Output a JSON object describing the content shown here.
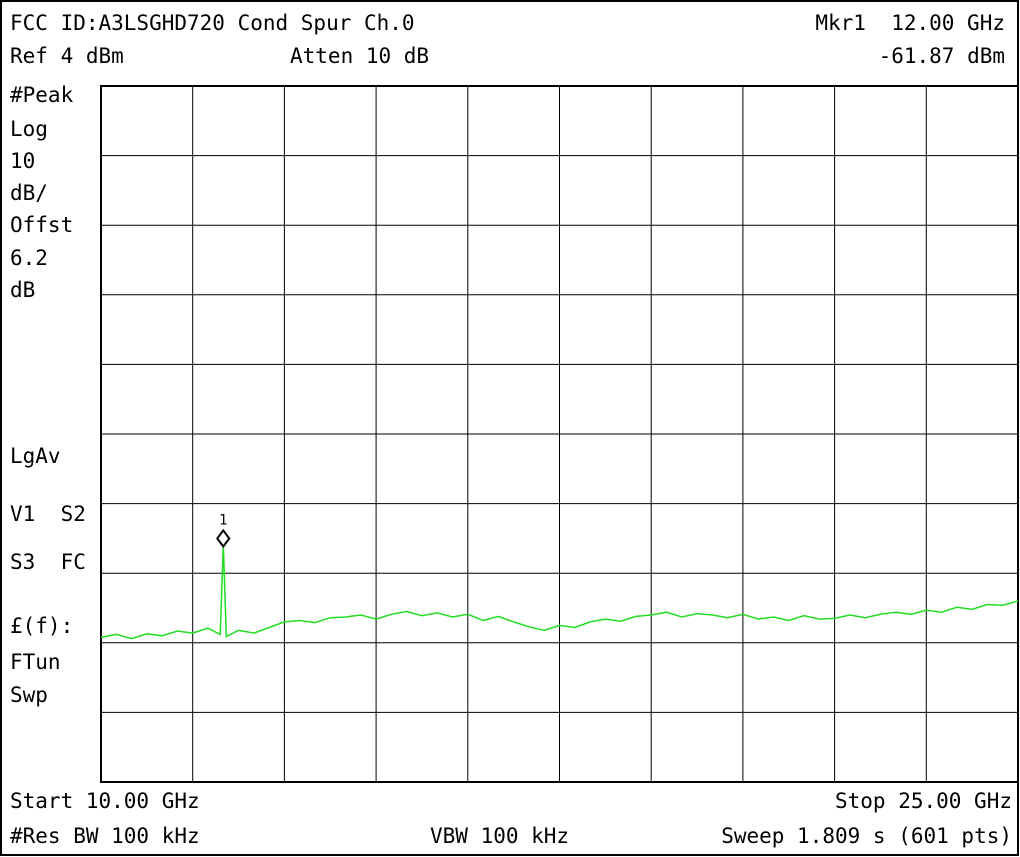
{
  "chart_data": {
    "type": "line",
    "title": "FCC ID:A3LSGHD720 Cond Spur Ch.0",
    "marker_readout": "Mkr1  12.00 GHz",
    "marker_level": "-61.87 dBm",
    "ref_level": "Ref 4 dBm",
    "attenuation": "Atten 10 dB",
    "side_labels": [
      "#Peak",
      "Log",
      "10",
      "dB/",
      "Offst",
      "6.2",
      "dB",
      "LgAv",
      "V1  S2",
      "S3  FC",
      "£(f):",
      "FTun",
      "Swp"
    ],
    "start": "Start 10.00 GHz",
    "stop": "Stop 25.00 GHz",
    "res_bw": "#Res BW 100 kHz",
    "vbw": "VBW 100 kHz",
    "sweep": "Sweep 1.809 s (601 pts)",
    "xlim": [
      10,
      25
    ],
    "ylim": [
      -96,
      4
    ],
    "marker": {
      "label": "1",
      "x": 12,
      "value": -61.87
    },
    "series": [
      {
        "color": "#22dd22",
        "x": [
          10,
          10.25,
          10.5,
          10.75,
          11,
          11.25,
          11.5,
          11.75,
          11.95,
          12,
          12.05,
          12.25,
          12.5,
          12.75,
          13,
          13.25,
          13.5,
          13.75,
          14,
          14.25,
          14.5,
          14.75,
          15,
          15.25,
          15.5,
          15.75,
          16,
          16.25,
          16.5,
          16.75,
          17,
          17.25,
          17.5,
          17.75,
          18,
          18.25,
          18.5,
          18.75,
          19,
          19.25,
          19.5,
          19.75,
          20,
          20.25,
          20.5,
          20.75,
          21,
          21.25,
          21.5,
          21.75,
          22,
          22.25,
          22.5,
          22.75,
          23,
          23.25,
          23.5,
          23.75,
          24,
          24.25,
          24.5,
          24.75,
          25
        ],
        "values": [
          -75.2,
          -74.8,
          -75.4,
          -74.7,
          -75.0,
          -74.3,
          -74.6,
          -73.9,
          -74.8,
          -61.87,
          -75.1,
          -74.2,
          -74.6,
          -73.8,
          -73.0,
          -72.8,
          -73.1,
          -72.4,
          -72.3,
          -72.0,
          -72.6,
          -71.9,
          -71.5,
          -72.1,
          -71.7,
          -72.3,
          -71.9,
          -72.8,
          -72.2,
          -73.0,
          -73.7,
          -74.2,
          -73.5,
          -73.8,
          -73.0,
          -72.6,
          -72.9,
          -72.2,
          -72.0,
          -71.6,
          -72.3,
          -71.8,
          -72.0,
          -72.4,
          -71.9,
          -72.6,
          -72.3,
          -72.8,
          -72.1,
          -72.6,
          -72.5,
          -72.0,
          -72.4,
          -71.9,
          -71.6,
          -71.9,
          -71.3,
          -71.6,
          -70.9,
          -71.2,
          -70.5,
          -70.6,
          -70.0
        ]
      }
    ]
  }
}
